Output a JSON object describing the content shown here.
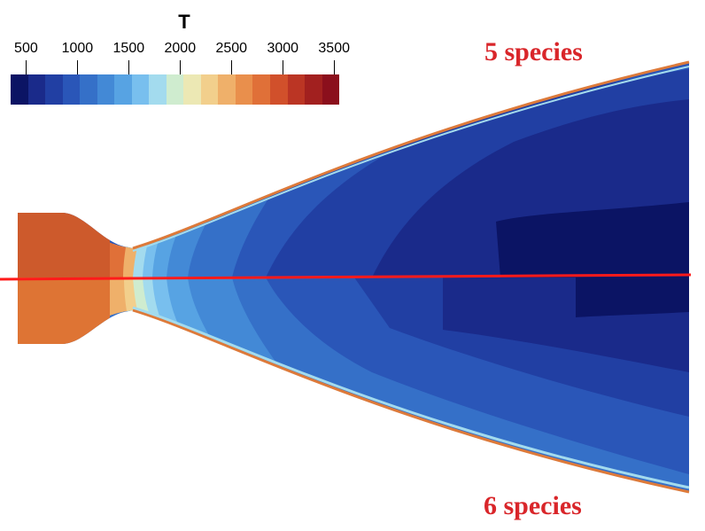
{
  "colorbar": {
    "title": "T",
    "ticks": [
      "500",
      "1000",
      "1500",
      "2000",
      "2500",
      "3000",
      "3500"
    ],
    "tick_values": [
      500,
      1000,
      1500,
      2000,
      2500,
      3000,
      3500
    ],
    "range": [
      350,
      3550
    ],
    "colors": [
      "#0b1464",
      "#1a2a8a",
      "#213fa3",
      "#2a56b8",
      "#3570c8",
      "#4389d6",
      "#57a3e3",
      "#78bfee",
      "#a3dbee",
      "#cfeccf",
      "#ece8b4",
      "#f2cf8c",
      "#efb06a",
      "#e98f4c",
      "#e07038",
      "#d1502b",
      "#bb3524",
      "#a2201f",
      "#8b0f1c"
    ]
  },
  "labels": {
    "top_case": "5 species",
    "bottom_case": "6 species"
  },
  "colors": {
    "label_red": "#d9262a",
    "axis_line": "#ff1a1a",
    "chamber_top": "#cd5a2c",
    "chamber_bottom": "#de7434",
    "edge_orange": "#dd7a3a"
  }
}
